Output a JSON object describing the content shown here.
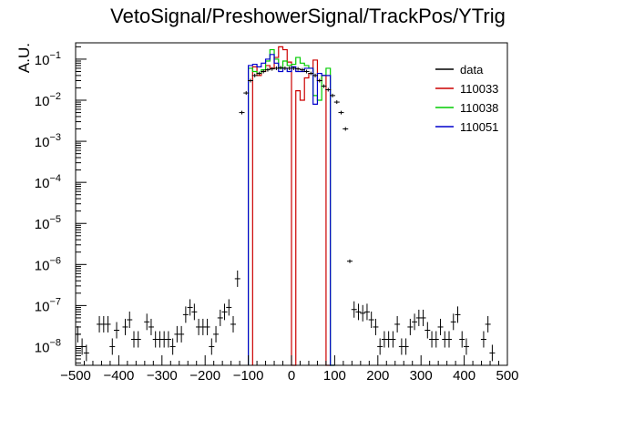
{
  "chart_data": {
    "type": "histogram",
    "title": "VetoSignal/PreshowerSignal/TrackPos/YTrig",
    "xlabel": "",
    "ylabel": "A.U.",
    "xlim": [
      -500,
      500
    ],
    "ylim": [
      3.5e-09,
      0.25
    ],
    "yscale": "log",
    "grid": false,
    "legend_position": "top-right",
    "x_ticks": [
      "−500",
      "−400",
      "−300",
      "−200",
      "−100",
      "0",
      "100",
      "200",
      "300",
      "400",
      "500"
    ],
    "y_ticks": [
      {
        "base": "10",
        "exp": "−8",
        "value": 1e-08
      },
      {
        "base": "10",
        "exp": "−7",
        "value": 1e-07
      },
      {
        "base": "10",
        "exp": "−6",
        "value": 1e-06
      },
      {
        "base": "10",
        "exp": "−5",
        "value": 1e-05
      },
      {
        "base": "10",
        "exp": "−4",
        "value": 0.0001
      },
      {
        "base": "10",
        "exp": "−3",
        "value": 0.001
      },
      {
        "base": "10",
        "exp": "−2",
        "value": 0.01
      },
      {
        "base": "10",
        "exp": "−1",
        "value": 0.1
      }
    ],
    "bin_width": 10,
    "series": [
      {
        "name": "data",
        "style": "markers",
        "color": "#000000",
        "points": [
          [
            -495,
            2e-08
          ],
          [
            -485,
            1e-08
          ],
          [
            -475,
            7e-09
          ],
          [
            -445,
            3.5e-08
          ],
          [
            -435,
            3.5e-08
          ],
          [
            -425,
            3.5e-08
          ],
          [
            -415,
            1e-08
          ],
          [
            -405,
            2.5e-08
          ],
          [
            -385,
            3e-08
          ],
          [
            -375,
            4.5e-08
          ],
          [
            -365,
            1.5e-08
          ],
          [
            -355,
            1.5e-08
          ],
          [
            -335,
            4e-08
          ],
          [
            -325,
            3e-08
          ],
          [
            -315,
            1.5e-08
          ],
          [
            -305,
            1.5e-08
          ],
          [
            -295,
            1.5e-08
          ],
          [
            -285,
            1.5e-08
          ],
          [
            -275,
            1e-08
          ],
          [
            -265,
            2e-08
          ],
          [
            -255,
            2e-08
          ],
          [
            -245,
            6e-08
          ],
          [
            -235,
            9e-08
          ],
          [
            -225,
            7e-08
          ],
          [
            -215,
            3e-08
          ],
          [
            -205,
            3e-08
          ],
          [
            -195,
            3e-08
          ],
          [
            -185,
            1e-08
          ],
          [
            -175,
            2e-08
          ],
          [
            -165,
            5e-08
          ],
          [
            -155,
            7e-08
          ],
          [
            -145,
            9e-08
          ],
          [
            -135,
            3.5e-08
          ],
          [
            -125,
            4.5e-07
          ],
          [
            -115,
            0.005
          ],
          [
            -105,
            0.015
          ],
          [
            -95,
            0.03
          ],
          [
            -85,
            0.04
          ],
          [
            -75,
            0.045
          ],
          [
            -65,
            0.05
          ],
          [
            -55,
            0.055
          ],
          [
            -45,
            0.058
          ],
          [
            -35,
            0.06
          ],
          [
            -25,
            0.062
          ],
          [
            -15,
            0.06
          ],
          [
            -5,
            0.06
          ],
          [
            5,
            0.06
          ],
          [
            15,
            0.058
          ],
          [
            25,
            0.055
          ],
          [
            35,
            0.05
          ],
          [
            45,
            0.045
          ],
          [
            55,
            0.04
          ],
          [
            65,
            0.03
          ],
          [
            75,
            0.022
          ],
          [
            85,
            0.018
          ],
          [
            95,
            0.013
          ],
          [
            105,
            0.009
          ],
          [
            115,
            0.005
          ],
          [
            125,
            0.002
          ],
          [
            135,
            1.2e-06
          ],
          [
            145,
            8e-08
          ],
          [
            155,
            7e-08
          ],
          [
            165,
            6.5e-08
          ],
          [
            175,
            7e-08
          ],
          [
            185,
            4.5e-08
          ],
          [
            195,
            3e-08
          ],
          [
            205,
            1e-08
          ],
          [
            215,
            1.5e-08
          ],
          [
            225,
            1.5e-08
          ],
          [
            235,
            1.5e-08
          ],
          [
            245,
            3.5e-08
          ],
          [
            255,
            1e-08
          ],
          [
            265,
            1e-08
          ],
          [
            275,
            3e-08
          ],
          [
            285,
            4e-08
          ],
          [
            295,
            5e-08
          ],
          [
            305,
            5e-08
          ],
          [
            315,
            2.5e-08
          ],
          [
            325,
            1.5e-08
          ],
          [
            335,
            1.5e-08
          ],
          [
            345,
            3e-08
          ],
          [
            355,
            1.5e-08
          ],
          [
            365,
            1.5e-08
          ],
          [
            375,
            4e-08
          ],
          [
            385,
            6e-08
          ],
          [
            395,
            1.5e-08
          ],
          [
            405,
            1e-08
          ],
          [
            445,
            1.5e-08
          ],
          [
            455,
            3.5e-08
          ],
          [
            465,
            7e-09
          ]
        ]
      },
      {
        "name": "110033",
        "style": "histogram",
        "color": "#cc0000",
        "bins": [
          [
            -90,
            0.065
          ],
          [
            -80,
            0.04
          ],
          [
            -70,
            0.05
          ],
          [
            -60,
            0.07
          ],
          [
            -50,
            0.06
          ],
          [
            -40,
            0.11
          ],
          [
            -30,
            0.2
          ],
          [
            -20,
            0.17
          ],
          [
            -10,
            0.085
          ],
          [
            0,
            3e-09
          ],
          [
            10,
            0.017
          ],
          [
            20,
            0.01
          ],
          [
            30,
            0.035
          ],
          [
            40,
            0.045
          ],
          [
            50,
            0.095
          ],
          [
            60,
            0.03
          ],
          [
            70,
            0.04
          ],
          [
            80,
            3e-09
          ]
        ]
      },
      {
        "name": "110038",
        "style": "histogram",
        "color": "#00cc00",
        "bins": [
          [
            -100,
            0.06
          ],
          [
            -90,
            0.05
          ],
          [
            -80,
            0.045
          ],
          [
            -70,
            0.055
          ],
          [
            -60,
            0.09
          ],
          [
            -50,
            0.17
          ],
          [
            -40,
            0.1
          ],
          [
            -30,
            0.06
          ],
          [
            -20,
            0.09
          ],
          [
            -10,
            0.07
          ],
          [
            0,
            0.075
          ],
          [
            10,
            0.11
          ],
          [
            20,
            0.08
          ],
          [
            30,
            0.07
          ],
          [
            40,
            0.06
          ],
          [
            50,
            0.013
          ],
          [
            60,
            0.01
          ],
          [
            70,
            0.04
          ],
          [
            80,
            0.06
          ],
          [
            90,
            3e-09
          ]
        ]
      },
      {
        "name": "110051",
        "style": "histogram",
        "color": "#0000cc",
        "bins": [
          [
            -100,
            0.07
          ],
          [
            -90,
            0.075
          ],
          [
            -80,
            0.065
          ],
          [
            -70,
            0.08
          ],
          [
            -60,
            0.1
          ],
          [
            -50,
            0.13
          ],
          [
            -40,
            0.08
          ],
          [
            -30,
            0.05
          ],
          [
            -20,
            0.06
          ],
          [
            -10,
            0.05
          ],
          [
            0,
            0.065
          ],
          [
            10,
            0.05
          ],
          [
            20,
            0.05
          ],
          [
            30,
            0.06
          ],
          [
            40,
            0.06
          ],
          [
            50,
            0.008
          ],
          [
            60,
            0.045
          ],
          [
            70,
            0.04
          ],
          [
            80,
            0.04
          ],
          [
            90,
            3e-09
          ]
        ]
      }
    ]
  }
}
